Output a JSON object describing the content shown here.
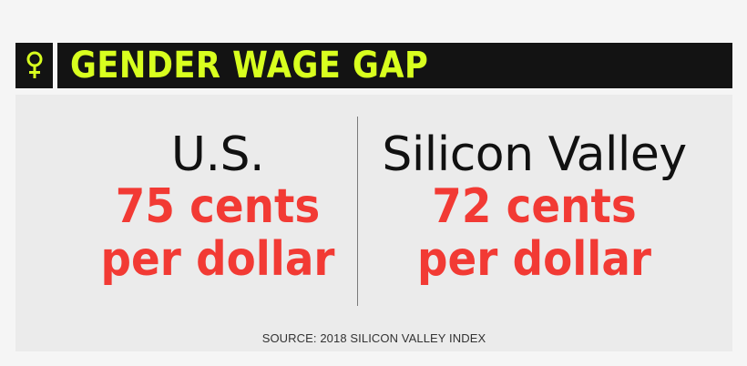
{
  "header": {
    "title": "GENDER WAGE GAP",
    "icon": "female-symbol-icon",
    "background_color": "#131313",
    "title_color": "#d8ff1f"
  },
  "comparison": [
    {
      "region": "U.S.",
      "line1": "75 cents",
      "line2": "per dollar"
    },
    {
      "region": "Silicon Valley",
      "line1": "72 cents",
      "line2": "per dollar"
    }
  ],
  "value_color": "#f23a34",
  "source": "SOURCE: 2018 SILICON VALLEY INDEX"
}
